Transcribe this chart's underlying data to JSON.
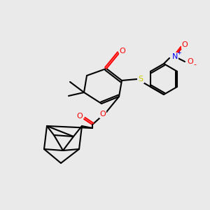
{
  "bg_color": "#eaeaea",
  "bond_color": "#000000",
  "bond_lw": 1.5,
  "atom_colors": {
    "O": "#ff0000",
    "S": "#cccc00",
    "N": "#0000ff",
    "C": "#000000"
  }
}
